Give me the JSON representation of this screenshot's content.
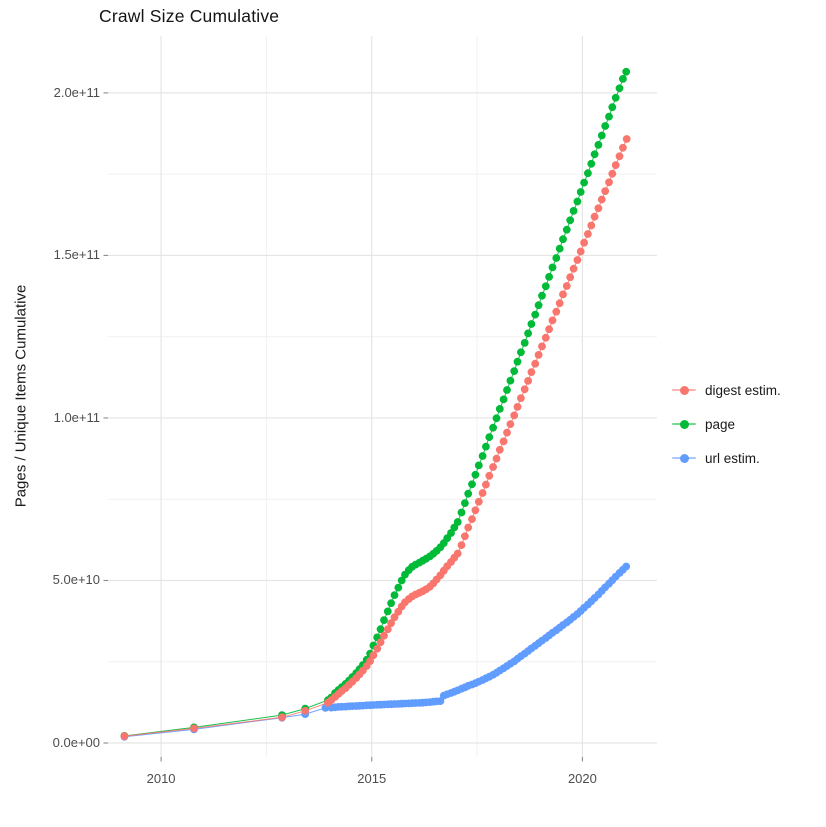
{
  "title": "Crawl Size Cumulative",
  "y_axis_title": "Pages / Unique Items Cumulative",
  "legend": {
    "position": "right",
    "items": [
      {
        "label": "digest estim.",
        "color": "#F8766D"
      },
      {
        "label": "page",
        "color": "#00BA38"
      },
      {
        "label": "url estim.",
        "color": "#619CFF"
      }
    ]
  },
  "style": {
    "background": "#ffffff",
    "major_grid": "#e5e5e5",
    "minor_grid": "#f1f1f1",
    "tick_mark": "#8c8c8c",
    "axis_text": "#4d4d4d",
    "title_text": "#141414"
  },
  "chart_data": {
    "type": "line",
    "title": "Crawl Size Cumulative",
    "xlabel": "",
    "ylabel": "Pages / Unique Items Cumulative",
    "legend_position": "right",
    "grid": true,
    "values_unit": "1e9 (billions); y axis shown in scientific notation",
    "xlim": [
      2008.74,
      2021.77
    ],
    "ylim": [
      -4.3,
      217.5
    ],
    "x_ticks": [
      2010,
      2015,
      2020
    ],
    "x_tick_labels": [
      "2010",
      "2015",
      "2020"
    ],
    "x_minor_ticks": [
      2012.5,
      2017.5
    ],
    "y_ticks": [
      0,
      50,
      100,
      150,
      200
    ],
    "y_tick_labels": [
      "0.0e+00",
      "5.0e+10",
      "1.0e+11",
      "1.5e+11",
      "2.0e+11"
    ],
    "y_minor_ticks": [
      25,
      75,
      125,
      175
    ],
    "draw_order": [
      1,
      2,
      0
    ],
    "series": [
      {
        "name": "digest estim.",
        "color": "#F8766D",
        "points": [
          [
            2009.13,
            2.1
          ],
          [
            2010.78,
            4.5
          ],
          [
            2012.87,
            7.9
          ],
          [
            2013.42,
            9.9
          ],
          [
            2013.96,
            12.4
          ],
          [
            2014.04,
            13.2
          ],
          [
            2014.13,
            14.2
          ],
          [
            2014.21,
            15.1
          ],
          [
            2014.29,
            16.0
          ],
          [
            2014.38,
            16.9
          ],
          [
            2014.46,
            17.9
          ],
          [
            2014.54,
            18.9
          ],
          [
            2014.63,
            20.0
          ],
          [
            2014.71,
            21.1
          ],
          [
            2014.79,
            22.3
          ],
          [
            2014.88,
            23.7
          ],
          [
            2014.96,
            25.2
          ],
          [
            2015.04,
            27.0
          ],
          [
            2015.13,
            29.0
          ],
          [
            2015.21,
            31.0
          ],
          [
            2015.29,
            33.0
          ],
          [
            2015.38,
            35.0
          ],
          [
            2015.46,
            36.9
          ],
          [
            2015.54,
            38.7
          ],
          [
            2015.63,
            40.4
          ],
          [
            2015.71,
            42.0
          ],
          [
            2015.79,
            43.3
          ],
          [
            2015.88,
            44.3
          ],
          [
            2015.96,
            45.1
          ],
          [
            2016.04,
            45.7
          ],
          [
            2016.13,
            46.2
          ],
          [
            2016.21,
            46.7
          ],
          [
            2016.29,
            47.3
          ],
          [
            2016.38,
            48.1
          ],
          [
            2016.46,
            49.1
          ],
          [
            2016.54,
            50.3
          ],
          [
            2016.63,
            51.6
          ],
          [
            2016.71,
            53.0
          ],
          [
            2016.79,
            54.4
          ],
          [
            2016.88,
            55.7
          ],
          [
            2016.96,
            57.0
          ],
          [
            2017.04,
            58.3
          ],
          [
            2017.13,
            60.9
          ],
          [
            2017.21,
            63.6
          ],
          [
            2017.29,
            66.3
          ],
          [
            2017.38,
            68.9
          ],
          [
            2017.46,
            71.6
          ],
          [
            2017.54,
            74.2
          ],
          [
            2017.63,
            76.9
          ],
          [
            2017.71,
            79.5
          ],
          [
            2017.79,
            82.2
          ],
          [
            2017.88,
            84.9
          ],
          [
            2017.96,
            87.5
          ],
          [
            2018.04,
            90.2
          ],
          [
            2018.13,
            92.8
          ],
          [
            2018.21,
            95.5
          ],
          [
            2018.29,
            98.1
          ],
          [
            2018.38,
            100.8
          ],
          [
            2018.46,
            103.4
          ],
          [
            2018.54,
            106.1
          ],
          [
            2018.63,
            108.8
          ],
          [
            2018.71,
            111.4
          ],
          [
            2018.79,
            114.1
          ],
          [
            2018.88,
            116.7
          ],
          [
            2018.96,
            119.4
          ],
          [
            2019.04,
            122.0
          ],
          [
            2019.13,
            124.7
          ],
          [
            2019.21,
            127.3
          ],
          [
            2019.29,
            130.0
          ],
          [
            2019.38,
            132.7
          ],
          [
            2019.46,
            135.3
          ],
          [
            2019.54,
            138.0
          ],
          [
            2019.63,
            140.6
          ],
          [
            2019.71,
            143.3
          ],
          [
            2019.79,
            145.9
          ],
          [
            2019.88,
            148.6
          ],
          [
            2019.96,
            151.2
          ],
          [
            2020.04,
            153.9
          ],
          [
            2020.13,
            156.6
          ],
          [
            2020.21,
            159.2
          ],
          [
            2020.29,
            161.9
          ],
          [
            2020.38,
            164.5
          ],
          [
            2020.46,
            167.2
          ],
          [
            2020.54,
            169.8
          ],
          [
            2020.63,
            172.5
          ],
          [
            2020.71,
            175.1
          ],
          [
            2020.79,
            177.8
          ],
          [
            2020.88,
            180.5
          ],
          [
            2020.96,
            183.1
          ],
          [
            2021.05,
            185.8
          ]
        ]
      },
      {
        "name": "page",
        "color": "#00BA38",
        "points": [
          [
            2009.13,
            2.2
          ],
          [
            2010.78,
            4.8
          ],
          [
            2012.87,
            8.6
          ],
          [
            2013.42,
            10.6
          ],
          [
            2013.96,
            13.2
          ],
          [
            2014.04,
            14.0
          ],
          [
            2014.13,
            15.4
          ],
          [
            2014.21,
            16.3
          ],
          [
            2014.29,
            17.2
          ],
          [
            2014.38,
            18.2
          ],
          [
            2014.46,
            19.2
          ],
          [
            2014.54,
            20.3
          ],
          [
            2014.63,
            21.5
          ],
          [
            2014.71,
            22.7
          ],
          [
            2014.79,
            24.0
          ],
          [
            2014.88,
            25.6
          ],
          [
            2014.96,
            27.5
          ],
          [
            2015.04,
            30.0
          ],
          [
            2015.13,
            32.5
          ],
          [
            2015.21,
            35.0
          ],
          [
            2015.29,
            37.8
          ],
          [
            2015.38,
            40.5
          ],
          [
            2015.46,
            43.0
          ],
          [
            2015.54,
            45.5
          ],
          [
            2015.63,
            47.8
          ],
          [
            2015.71,
            50.0
          ],
          [
            2015.79,
            51.8
          ],
          [
            2015.88,
            53.2
          ],
          [
            2015.96,
            54.2
          ],
          [
            2016.04,
            54.9
          ],
          [
            2016.13,
            55.5
          ],
          [
            2016.21,
            56.1
          ],
          [
            2016.29,
            56.7
          ],
          [
            2016.38,
            57.4
          ],
          [
            2016.46,
            58.2
          ],
          [
            2016.54,
            59.1
          ],
          [
            2016.63,
            60.2
          ],
          [
            2016.71,
            61.5
          ],
          [
            2016.79,
            63.0
          ],
          [
            2016.88,
            64.6
          ],
          [
            2016.96,
            66.3
          ],
          [
            2017.04,
            68.0
          ],
          [
            2017.13,
            70.9
          ],
          [
            2017.21,
            73.8
          ],
          [
            2017.29,
            76.7
          ],
          [
            2017.38,
            79.6
          ],
          [
            2017.46,
            82.5
          ],
          [
            2017.54,
            85.4
          ],
          [
            2017.63,
            88.3
          ],
          [
            2017.71,
            91.2
          ],
          [
            2017.79,
            94.1
          ],
          [
            2017.88,
            97.0
          ],
          [
            2017.96,
            99.9
          ],
          [
            2018.04,
            102.8
          ],
          [
            2018.13,
            105.7
          ],
          [
            2018.21,
            108.6
          ],
          [
            2018.29,
            111.5
          ],
          [
            2018.38,
            114.4
          ],
          [
            2018.46,
            117.3
          ],
          [
            2018.54,
            120.2
          ],
          [
            2018.63,
            123.1
          ],
          [
            2018.71,
            126.0
          ],
          [
            2018.79,
            128.9
          ],
          [
            2018.88,
            131.8
          ],
          [
            2018.96,
            134.7
          ],
          [
            2019.04,
            137.6
          ],
          [
            2019.13,
            140.5
          ],
          [
            2019.21,
            143.4
          ],
          [
            2019.29,
            146.3
          ],
          [
            2019.38,
            149.2
          ],
          [
            2019.46,
            152.1
          ],
          [
            2019.54,
            155.0
          ],
          [
            2019.63,
            157.9
          ],
          [
            2019.71,
            160.8
          ],
          [
            2019.79,
            163.7
          ],
          [
            2019.88,
            166.6
          ],
          [
            2019.96,
            169.5
          ],
          [
            2020.04,
            172.4
          ],
          [
            2020.13,
            175.3
          ],
          [
            2020.21,
            178.2
          ],
          [
            2020.29,
            181.1
          ],
          [
            2020.38,
            184.0
          ],
          [
            2020.46,
            186.9
          ],
          [
            2020.54,
            189.8
          ],
          [
            2020.63,
            192.7
          ],
          [
            2020.71,
            195.6
          ],
          [
            2020.79,
            198.5
          ],
          [
            2020.88,
            201.4
          ],
          [
            2020.96,
            204.3
          ],
          [
            2021.04,
            206.5
          ]
        ]
      },
      {
        "name": "url estim.",
        "color": "#619CFF",
        "points": [
          [
            2009.13,
            1.9
          ],
          [
            2010.78,
            4.2
          ],
          [
            2012.87,
            7.8
          ],
          [
            2013.42,
            8.9
          ],
          [
            2013.9,
            10.8
          ],
          [
            2014.04,
            10.9
          ],
          [
            2014.13,
            11.0
          ],
          [
            2014.21,
            11.1
          ],
          [
            2014.29,
            11.15
          ],
          [
            2014.38,
            11.2
          ],
          [
            2014.46,
            11.3
          ],
          [
            2014.54,
            11.35
          ],
          [
            2014.63,
            11.4
          ],
          [
            2014.71,
            11.45
          ],
          [
            2014.79,
            11.5
          ],
          [
            2014.88,
            11.6
          ],
          [
            2014.96,
            11.65
          ],
          [
            2015.04,
            11.7
          ],
          [
            2015.13,
            11.75
          ],
          [
            2015.21,
            11.8
          ],
          [
            2015.29,
            11.85
          ],
          [
            2015.38,
            11.9
          ],
          [
            2015.46,
            11.95
          ],
          [
            2015.54,
            12.0
          ],
          [
            2015.63,
            12.05
          ],
          [
            2015.71,
            12.1
          ],
          [
            2015.79,
            12.15
          ],
          [
            2015.88,
            12.2
          ],
          [
            2015.96,
            12.25
          ],
          [
            2016.04,
            12.3
          ],
          [
            2016.13,
            12.35
          ],
          [
            2016.21,
            12.4
          ],
          [
            2016.29,
            12.5
          ],
          [
            2016.38,
            12.6
          ],
          [
            2016.46,
            12.7
          ],
          [
            2016.54,
            12.8
          ],
          [
            2016.63,
            12.9
          ],
          [
            2016.71,
            14.6
          ],
          [
            2016.79,
            15.0
          ],
          [
            2016.88,
            15.4
          ],
          [
            2016.96,
            15.8
          ],
          [
            2017.04,
            16.2
          ],
          [
            2017.13,
            16.7
          ],
          [
            2017.21,
            17.1
          ],
          [
            2017.29,
            17.6
          ],
          [
            2017.38,
            18.0
          ],
          [
            2017.46,
            18.4
          ],
          [
            2017.54,
            18.9
          ],
          [
            2017.63,
            19.4
          ],
          [
            2017.71,
            19.9
          ],
          [
            2017.79,
            20.4
          ],
          [
            2017.88,
            21.0
          ],
          [
            2017.96,
            21.6
          ],
          [
            2018.04,
            22.3
          ],
          [
            2018.13,
            23.0
          ],
          [
            2018.21,
            23.7
          ],
          [
            2018.29,
            24.4
          ],
          [
            2018.38,
            25.1
          ],
          [
            2018.46,
            25.9
          ],
          [
            2018.54,
            26.7
          ],
          [
            2018.63,
            27.5
          ],
          [
            2018.71,
            28.3
          ],
          [
            2018.79,
            29.1
          ],
          [
            2018.88,
            29.9
          ],
          [
            2018.96,
            30.7
          ],
          [
            2019.04,
            31.5
          ],
          [
            2019.13,
            32.3
          ],
          [
            2019.21,
            33.1
          ],
          [
            2019.29,
            33.9
          ],
          [
            2019.38,
            34.7
          ],
          [
            2019.46,
            35.5
          ],
          [
            2019.54,
            36.3
          ],
          [
            2019.63,
            37.1
          ],
          [
            2019.71,
            37.9
          ],
          [
            2019.79,
            38.8
          ],
          [
            2019.88,
            39.7
          ],
          [
            2019.96,
            40.6
          ],
          [
            2020.04,
            41.6
          ],
          [
            2020.13,
            42.6
          ],
          [
            2020.21,
            43.6
          ],
          [
            2020.29,
            44.6
          ],
          [
            2020.38,
            45.7
          ],
          [
            2020.46,
            46.8
          ],
          [
            2020.54,
            47.9
          ],
          [
            2020.63,
            49.0
          ],
          [
            2020.71,
            50.1
          ],
          [
            2020.79,
            51.2
          ],
          [
            2020.88,
            52.3
          ],
          [
            2020.96,
            53.3
          ],
          [
            2021.04,
            54.3
          ]
        ]
      }
    ]
  }
}
